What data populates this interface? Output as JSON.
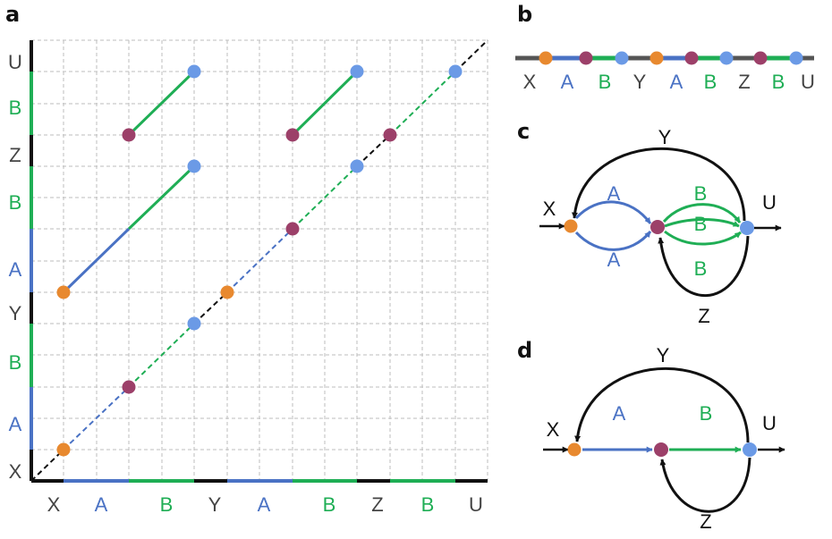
{
  "colors": {
    "X": "#e8892f",
    "A": "#4a72c4",
    "B": "#1fae55",
    "node_pink": "#9c4069",
    "node_blue": "#6b9ae6",
    "black": "#111111",
    "label_gray": "#444444",
    "grid": "#bdbdbd"
  },
  "panels": {
    "a": {
      "label": "a",
      "x_segments": [
        {
          "label": "X",
          "color_key": "black"
        },
        {
          "label": "A",
          "color_key": "A"
        },
        {
          "label": "B",
          "color_key": "B"
        },
        {
          "label": "Y",
          "color_key": "black"
        },
        {
          "label": "A",
          "color_key": "A"
        },
        {
          "label": "B",
          "color_key": "B"
        },
        {
          "label": "Z",
          "color_key": "black"
        },
        {
          "label": "B",
          "color_key": "B"
        },
        {
          "label": "U",
          "color_key": "black"
        }
      ],
      "y_segments": [
        {
          "label": "X",
          "color_key": "black"
        },
        {
          "label": "A",
          "color_key": "A"
        },
        {
          "label": "B",
          "color_key": "B"
        },
        {
          "label": "Y",
          "color_key": "black"
        },
        {
          "label": "A",
          "color_key": "A"
        },
        {
          "label": "B",
          "color_key": "B"
        },
        {
          "label": "Z",
          "color_key": "black"
        },
        {
          "label": "B",
          "color_key": "B"
        },
        {
          "label": "U",
          "color_key": "black"
        }
      ]
    },
    "b": {
      "label": "b",
      "labels": [
        {
          "text": "X",
          "color_key": "label_gray"
        },
        {
          "text": "A",
          "color_key": "A"
        },
        {
          "text": "B",
          "color_key": "B"
        },
        {
          "text": "Y",
          "color_key": "label_gray"
        },
        {
          "text": "A",
          "color_key": "A"
        },
        {
          "text": "B",
          "color_key": "B"
        },
        {
          "text": "Z",
          "color_key": "label_gray"
        },
        {
          "text": "B",
          "color_key": "B"
        },
        {
          "text": "U",
          "color_key": "label_gray"
        }
      ]
    },
    "c": {
      "label": "c",
      "node_labels": {
        "X": "X",
        "U": "U"
      },
      "edge_labels": {
        "Y": "Y",
        "Z": "Z",
        "A1": "A",
        "A2": "A",
        "B1": "B",
        "B2": "B",
        "B3": "B"
      }
    },
    "d": {
      "label": "d",
      "node_labels": {
        "X": "X",
        "U": "U"
      },
      "edge_labels": {
        "Y": "Y",
        "Z": "Z",
        "A": "A",
        "B": "B"
      }
    }
  }
}
